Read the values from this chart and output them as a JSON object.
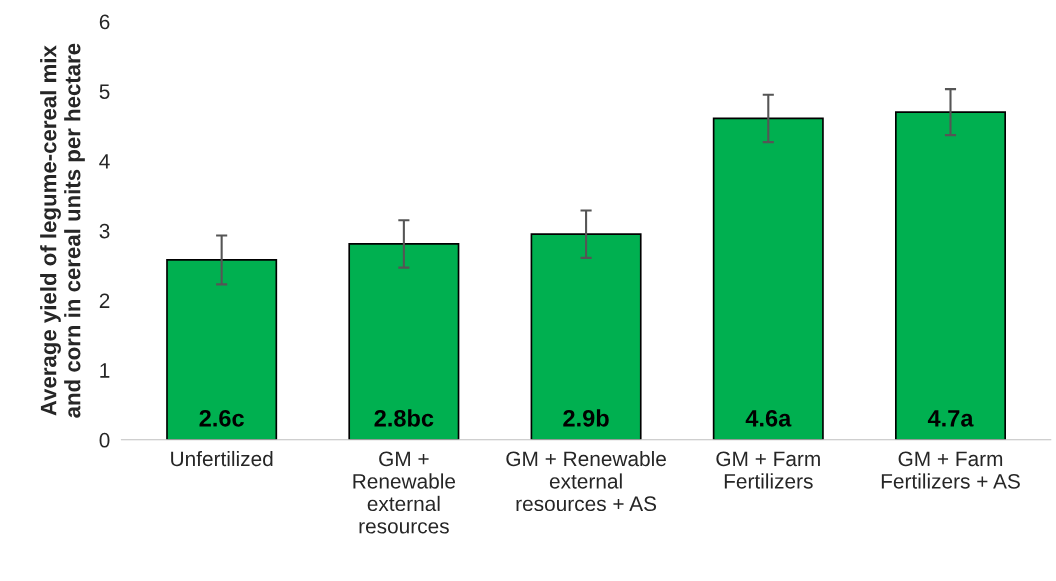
{
  "chart_data": {
    "type": "bar",
    "ylabel": "Average yield of legume-cereal mix\nand corn in cereal units per hectare",
    "categories": [
      "Unfertilized",
      "GM +\nRenewable\nexternal\nresources",
      "GM + Renewable\nexternal\nresources + AS",
      "GM + Farm\nFertilizers",
      "GM + Farm\nFertilizers + AS"
    ],
    "values": [
      2.58,
      2.81,
      2.95,
      4.61,
      4.7
    ],
    "errors": [
      0.35,
      0.34,
      0.34,
      0.34,
      0.33
    ],
    "value_labels": [
      "2.6c",
      "2.8bc",
      "2.9b",
      "4.6a",
      "4.7a"
    ],
    "color": "#00b050",
    "ylim": [
      0,
      6
    ],
    "yticks": [
      0,
      1,
      2,
      3,
      4,
      5,
      6
    ],
    "grid": false
  }
}
